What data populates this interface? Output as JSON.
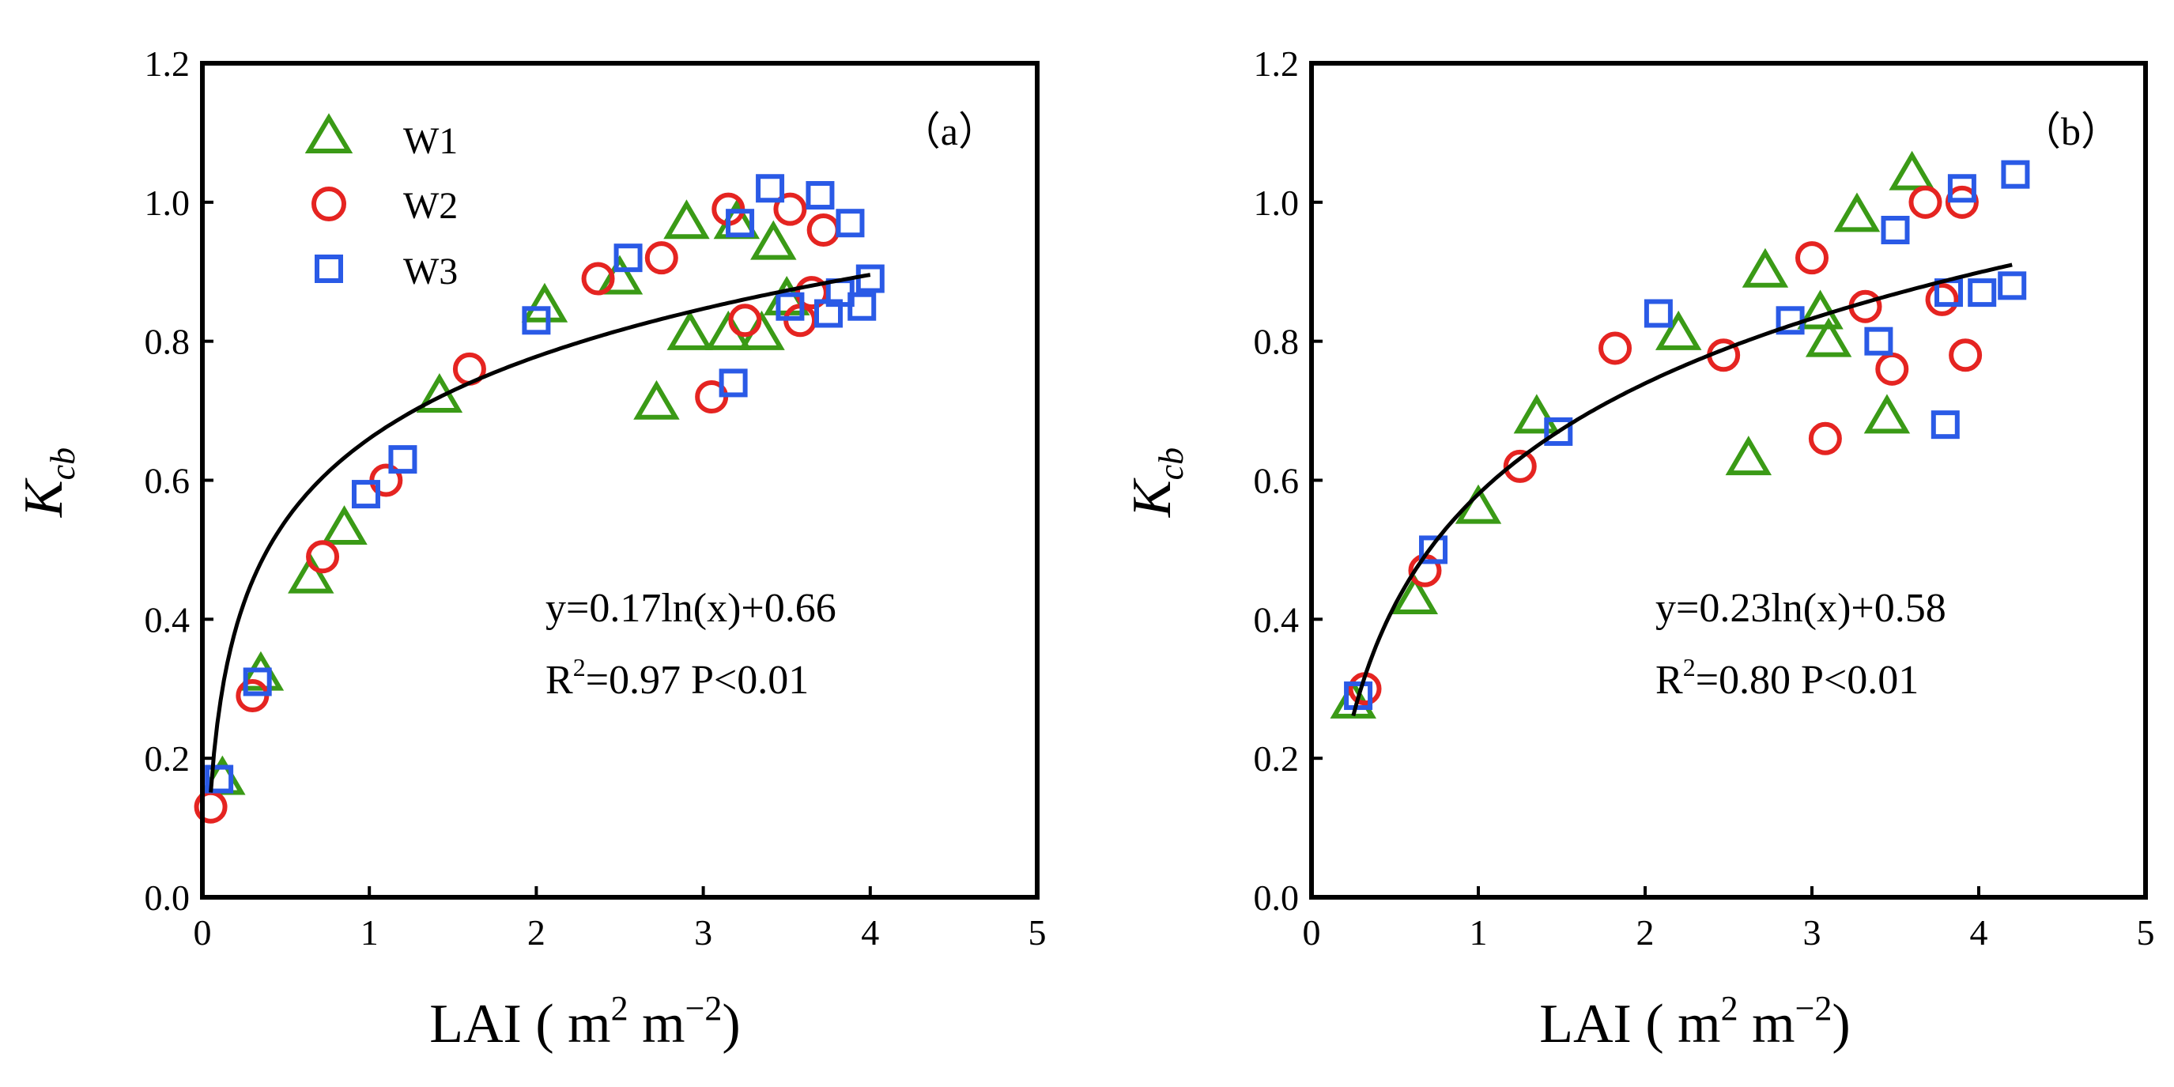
{
  "colors": {
    "W1": "#3a9a16",
    "W2": "#e52421",
    "W3": "#2a5ae6",
    "axis": "#000000",
    "fit": "#000000"
  },
  "chart_data": [
    {
      "type": "scatter",
      "panel_label": "（a）",
      "xlabel": {
        "prefix": "LAI ( m",
        "sup1": "2",
        "mid": " m",
        "sup2": "−2",
        "suffix": ")"
      },
      "ylabel": {
        "main": "K",
        "sub": "cb"
      },
      "xlim": [
        0,
        5
      ],
      "ylim": [
        0,
        1.2
      ],
      "xticks": [
        0,
        1,
        2,
        3,
        4,
        5
      ],
      "xtick_labels": [
        "0",
        "1",
        "2",
        "3",
        "4",
        "5"
      ],
      "yticks": [
        0,
        0.2,
        0.4,
        0.6,
        0.8,
        1.0,
        1.2
      ],
      "ytick_labels": [
        "0.0",
        "0.2",
        "0.4",
        "0.6",
        "0.8",
        "1.0",
        "1.2"
      ],
      "legend": [
        "W1",
        "W2",
        "W3"
      ],
      "equation": "y=0.17ln(x)+0.66",
      "stats": {
        "prefix": "R",
        "sup": "2",
        "text": "=0.97  P<0.01"
      },
      "fit": {
        "type": "log",
        "a": 0.17,
        "b": 0.66,
        "x_range": [
          0.05,
          4.0
        ]
      },
      "series": [
        {
          "name": "W1",
          "marker": "triangle",
          "points": [
            [
              0.12,
              0.17
            ],
            [
              0.35,
              0.32
            ],
            [
              0.65,
              0.46
            ],
            [
              0.85,
              0.53
            ],
            [
              1.42,
              0.72
            ],
            [
              2.05,
              0.85
            ],
            [
              2.5,
              0.89
            ],
            [
              2.72,
              0.71
            ],
            [
              2.9,
              0.97
            ],
            [
              2.92,
              0.81
            ],
            [
              3.15,
              0.81
            ],
            [
              3.2,
              0.97
            ],
            [
              3.35,
              0.81
            ],
            [
              3.42,
              0.94
            ],
            [
              3.5,
              0.86
            ]
          ]
        },
        {
          "name": "W2",
          "marker": "circle",
          "points": [
            [
              0.05,
              0.13
            ],
            [
              0.3,
              0.29
            ],
            [
              0.72,
              0.49
            ],
            [
              1.1,
              0.6
            ],
            [
              1.6,
              0.76
            ],
            [
              2.37,
              0.89
            ],
            [
              2.75,
              0.92
            ],
            [
              3.05,
              0.72
            ],
            [
              3.15,
              0.99
            ],
            [
              3.25,
              0.83
            ],
            [
              3.52,
              0.99
            ],
            [
              3.58,
              0.83
            ],
            [
              3.65,
              0.87
            ],
            [
              3.72,
              0.96
            ]
          ]
        },
        {
          "name": "W3",
          "marker": "square",
          "points": [
            [
              0.1,
              0.17
            ],
            [
              0.33,
              0.31
            ],
            [
              0.98,
              0.58
            ],
            [
              1.2,
              0.63
            ],
            [
              2.0,
              0.83
            ],
            [
              2.55,
              0.92
            ],
            [
              3.18,
              0.74
            ],
            [
              3.22,
              0.97
            ],
            [
              3.4,
              1.02
            ],
            [
              3.52,
              0.85
            ],
            [
              3.7,
              1.01
            ],
            [
              3.75,
              0.84
            ],
            [
              3.82,
              0.87
            ],
            [
              3.88,
              0.97
            ],
            [
              3.95,
              0.85
            ],
            [
              4.0,
              0.89
            ]
          ]
        }
      ]
    },
    {
      "type": "scatter",
      "panel_label": "（b）",
      "xlabel": {
        "prefix": "LAI ( m",
        "sup1": "2",
        "mid": " m",
        "sup2": "−2",
        "suffix": ")"
      },
      "ylabel": {
        "main": "K",
        "sub": "cb"
      },
      "xlim": [
        0,
        5
      ],
      "ylim": [
        0,
        1.2
      ],
      "xticks": [
        0,
        1,
        2,
        3,
        4,
        5
      ],
      "xtick_labels": [
        "0",
        "1",
        "2",
        "3",
        "4",
        "5"
      ],
      "yticks": [
        0,
        0.2,
        0.4,
        0.6,
        0.8,
        1.0,
        1.2
      ],
      "ytick_labels": [
        "0.0",
        "0.2",
        "0.4",
        "0.6",
        "0.8",
        "1.0",
        "1.2"
      ],
      "equation": "y=0.23ln(x)+0.58",
      "stats": {
        "prefix": "R",
        "sup": "2",
        "text": "=0.80  P<0.01"
      },
      "fit": {
        "type": "log",
        "a": 0.23,
        "b": 0.58,
        "x_range": [
          0.25,
          4.2
        ]
      },
      "series": [
        {
          "name": "W1",
          "marker": "triangle",
          "points": [
            [
              0.25,
              0.28
            ],
            [
              0.62,
              0.43
            ],
            [
              1.0,
              0.56
            ],
            [
              1.35,
              0.69
            ],
            [
              2.2,
              0.81
            ],
            [
              2.62,
              0.63
            ],
            [
              2.72,
              0.9
            ],
            [
              3.05,
              0.84
            ],
            [
              3.1,
              0.8
            ],
            [
              3.27,
              0.98
            ],
            [
              3.45,
              0.69
            ],
            [
              3.6,
              1.04
            ]
          ]
        },
        {
          "name": "W2",
          "marker": "circle",
          "points": [
            [
              0.32,
              0.3
            ],
            [
              0.68,
              0.47
            ],
            [
              1.25,
              0.62
            ],
            [
              1.82,
              0.79
            ],
            [
              2.47,
              0.78
            ],
            [
              3.0,
              0.92
            ],
            [
              3.08,
              0.66
            ],
            [
              3.32,
              0.85
            ],
            [
              3.48,
              0.76
            ],
            [
              3.68,
              1.0
            ],
            [
              3.78,
              0.86
            ],
            [
              3.9,
              1.0
            ],
            [
              3.92,
              0.78
            ]
          ]
        },
        {
          "name": "W3",
          "marker": "square",
          "points": [
            [
              0.28,
              0.29
            ],
            [
              0.73,
              0.5
            ],
            [
              1.48,
              0.67
            ],
            [
              2.08,
              0.84
            ],
            [
              2.87,
              0.83
            ],
            [
              3.4,
              0.8
            ],
            [
              3.5,
              0.96
            ],
            [
              3.8,
              0.68
            ],
            [
              3.82,
              0.87
            ],
            [
              3.9,
              1.02
            ],
            [
              4.02,
              0.87
            ],
            [
              4.2,
              0.88
            ],
            [
              4.22,
              1.04
            ]
          ]
        }
      ]
    }
  ]
}
